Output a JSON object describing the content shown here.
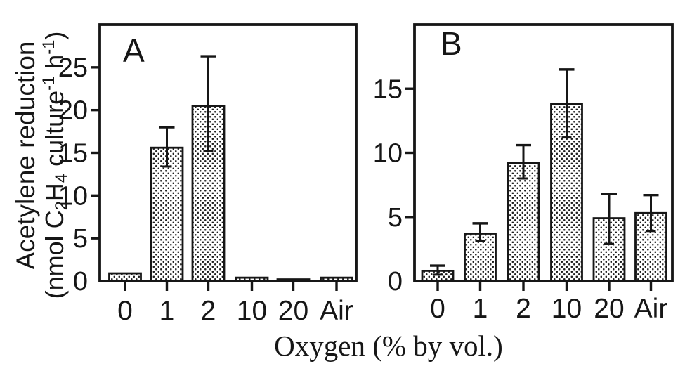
{
  "figure": {
    "background": "#ffffff",
    "ink_color": "#161616",
    "xlabel": "Oxygen (% by vol.)",
    "ylabel_line1": "Acetylene reduction",
    "ylabel_line2_parts": [
      {
        "t": "(nmol C",
        "s": "n"
      },
      {
        "t": "2",
        "s": "sub"
      },
      {
        "t": "H",
        "s": "n"
      },
      {
        "t": "4",
        "s": "sub"
      },
      {
        "t": " culture",
        "s": "n"
      },
      {
        "t": "-1",
        "s": "sup"
      },
      {
        "t": " h",
        "s": "n"
      },
      {
        "t": "-1",
        "s": "sup"
      },
      {
        "t": ")",
        "s": "n"
      }
    ]
  },
  "chart_data": [
    {
      "type": "bar",
      "panel": "A",
      "title": "",
      "xlabel": "Oxygen (% by vol.)",
      "ylabel": "Acetylene reduction (nmol C2H4 culture-1 h-1)",
      "categories": [
        "0",
        "1",
        "2",
        "10",
        "20",
        "Air"
      ],
      "values": [
        0.9,
        15.6,
        20.5,
        0.4,
        0.2,
        0.4
      ],
      "error_up": [
        0,
        2.4,
        5.8,
        0,
        0,
        0
      ],
      "error_down": [
        0,
        2.2,
        5.3,
        0,
        0,
        0
      ],
      "yticks": [
        0,
        5,
        10,
        15,
        20,
        25
      ],
      "ylim": [
        0,
        30
      ],
      "bar_fill": "stipple-dots",
      "bar_edge": "#161616",
      "legend": "none",
      "grid": false
    },
    {
      "type": "bar",
      "panel": "B",
      "title": "",
      "xlabel": "Oxygen (% by vol.)",
      "ylabel": "Acetylene reduction (nmol C2H4 culture-1 h-1)",
      "categories": [
        "0",
        "1",
        "2",
        "10",
        "20",
        "Air"
      ],
      "values": [
        0.8,
        3.7,
        9.2,
        13.8,
        4.9,
        5.3
      ],
      "error_up": [
        0.4,
        0.8,
        1.4,
        2.7,
        1.9,
        1.4
      ],
      "error_down": [
        0.3,
        0.6,
        1.2,
        2.6,
        2.0,
        1.4
      ],
      "yticks": [
        0,
        5,
        10,
        15
      ],
      "ylim": [
        0,
        20
      ],
      "bar_fill": "stipple-dots",
      "bar_edge": "#161616",
      "legend": "none",
      "grid": false
    }
  ]
}
